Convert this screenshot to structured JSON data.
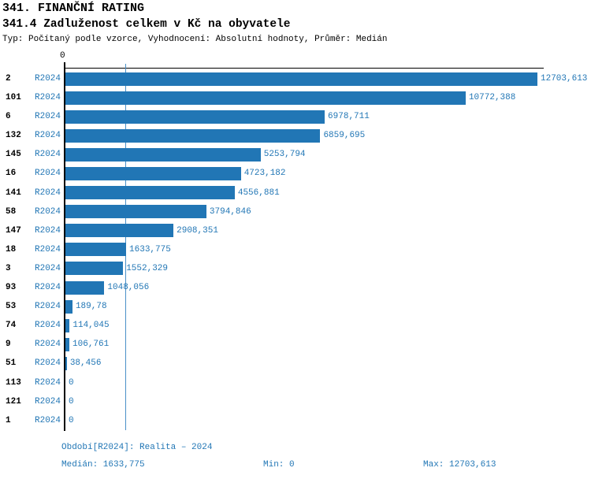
{
  "header": {
    "title": "341. FINANČNÍ RATING",
    "subtitle": "341.4 Zadluženost celkem v Kč na obyvatele",
    "meta": "Typ: Počítaný podle vzorce, Vyhodnocení: Absolutní hodnoty, Průměr: Medián"
  },
  "chart_data": {
    "type": "bar",
    "orientation": "horizontal",
    "title": "341.4 Zadluženost celkem v Kč na obyvatele",
    "series_label": "R2024",
    "x_axis": {
      "min": 0,
      "max": 12703.613,
      "tick_labels": [
        "0"
      ]
    },
    "median_value": 1633.775,
    "categories": [
      "2",
      "101",
      "6",
      "132",
      "145",
      "16",
      "141",
      "58",
      "147",
      "18",
      "3",
      "93",
      "53",
      "74",
      "9",
      "51",
      "113",
      "121",
      "1"
    ],
    "values": [
      12703.613,
      10772.388,
      6978.711,
      6859.695,
      5253.794,
      4723.182,
      4556.881,
      3794.846,
      2908.351,
      1633.775,
      1552.329,
      1048.056,
      189.78,
      114.045,
      106.761,
      38.456,
      0,
      0,
      0
    ],
    "value_labels": [
      "12703,613",
      "10772,388",
      "6978,711",
      "6859,695",
      "5253,794",
      "4723,182",
      "4556,881",
      "3794,846",
      "2908,351",
      "1633,775",
      "1552,329",
      "1048,056",
      "189,78",
      "114,045",
      "106,761",
      "38,456",
      "0",
      "0",
      "0"
    ],
    "legend_position": "none",
    "grid": "median-line-only",
    "colors": {
      "bar": "#2176b5",
      "value_text": "#2176b5",
      "median_line": "#4a90c8",
      "axis": "#000000",
      "category_text": "#000000"
    }
  },
  "footer": {
    "period": "Období[R2024]: Realita – 2024",
    "median": "Medián: 1633,775",
    "min": "Min: 0",
    "max": "Max: 12703,613"
  }
}
